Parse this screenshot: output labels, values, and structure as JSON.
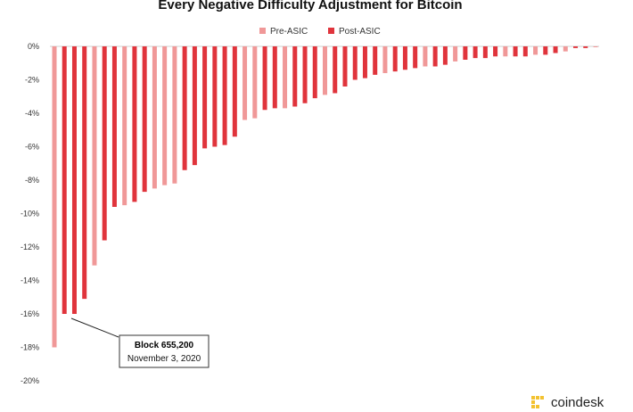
{
  "chart_data": {
    "type": "bar",
    "title": "Every Negative Difficulty Adjustment for Bitcoin",
    "ylim": [
      -20,
      0
    ],
    "yticks": [
      "0%",
      "-2%",
      "-4%",
      "-6%",
      "-8%",
      "-10%",
      "-12%",
      "-14%",
      "-16%",
      "-18%",
      "-20%"
    ],
    "legend": [
      {
        "name": "Pre-ASIC",
        "color": "#f09898"
      },
      {
        "name": "Post-ASIC",
        "color": "#e0343c"
      }
    ],
    "values": [
      {
        "v": -18.0,
        "s": "pre"
      },
      {
        "v": -16.0,
        "s": "post"
      },
      {
        "v": -16.0,
        "s": "post"
      },
      {
        "v": -15.1,
        "s": "post"
      },
      {
        "v": -13.1,
        "s": "pre"
      },
      {
        "v": -11.6,
        "s": "post"
      },
      {
        "v": -9.6,
        "s": "post"
      },
      {
        "v": -9.5,
        "s": "pre"
      },
      {
        "v": -9.3,
        "s": "post"
      },
      {
        "v": -8.7,
        "s": "post"
      },
      {
        "v": -8.5,
        "s": "pre"
      },
      {
        "v": -8.3,
        "s": "pre"
      },
      {
        "v": -8.2,
        "s": "pre"
      },
      {
        "v": -7.4,
        "s": "post"
      },
      {
        "v": -7.1,
        "s": "post"
      },
      {
        "v": -6.1,
        "s": "post"
      },
      {
        "v": -6.0,
        "s": "post"
      },
      {
        "v": -5.9,
        "s": "post"
      },
      {
        "v": -5.4,
        "s": "post"
      },
      {
        "v": -4.4,
        "s": "pre"
      },
      {
        "v": -4.3,
        "s": "pre"
      },
      {
        "v": -3.8,
        "s": "post"
      },
      {
        "v": -3.7,
        "s": "post"
      },
      {
        "v": -3.7,
        "s": "pre"
      },
      {
        "v": -3.6,
        "s": "post"
      },
      {
        "v": -3.4,
        "s": "post"
      },
      {
        "v": -3.1,
        "s": "post"
      },
      {
        "v": -2.9,
        "s": "pre"
      },
      {
        "v": -2.8,
        "s": "post"
      },
      {
        "v": -2.4,
        "s": "post"
      },
      {
        "v": -2.0,
        "s": "post"
      },
      {
        "v": -1.9,
        "s": "post"
      },
      {
        "v": -1.7,
        "s": "post"
      },
      {
        "v": -1.6,
        "s": "pre"
      },
      {
        "v": -1.5,
        "s": "post"
      },
      {
        "v": -1.4,
        "s": "post"
      },
      {
        "v": -1.3,
        "s": "post"
      },
      {
        "v": -1.2,
        "s": "pre"
      },
      {
        "v": -1.2,
        "s": "post"
      },
      {
        "v": -1.1,
        "s": "post"
      },
      {
        "v": -0.9,
        "s": "pre"
      },
      {
        "v": -0.8,
        "s": "post"
      },
      {
        "v": -0.7,
        "s": "post"
      },
      {
        "v": -0.7,
        "s": "post"
      },
      {
        "v": -0.6,
        "s": "post"
      },
      {
        "v": -0.6,
        "s": "pre"
      },
      {
        "v": -0.6,
        "s": "post"
      },
      {
        "v": -0.6,
        "s": "post"
      },
      {
        "v": -0.5,
        "s": "pre"
      },
      {
        "v": -0.5,
        "s": "post"
      },
      {
        "v": -0.4,
        "s": "post"
      },
      {
        "v": -0.3,
        "s": "pre"
      },
      {
        "v": -0.1,
        "s": "post"
      },
      {
        "v": -0.1,
        "s": "post"
      },
      {
        "v": -0.05,
        "s": "pre"
      }
    ],
    "annotation": {
      "label": "Block 655,200",
      "sublabel": "November 3, 2020",
      "points_to_index": 1
    },
    "grid": false,
    "legend_position": "top-center"
  },
  "branding": {
    "name": "coindesk",
    "color": "#f3c230"
  }
}
